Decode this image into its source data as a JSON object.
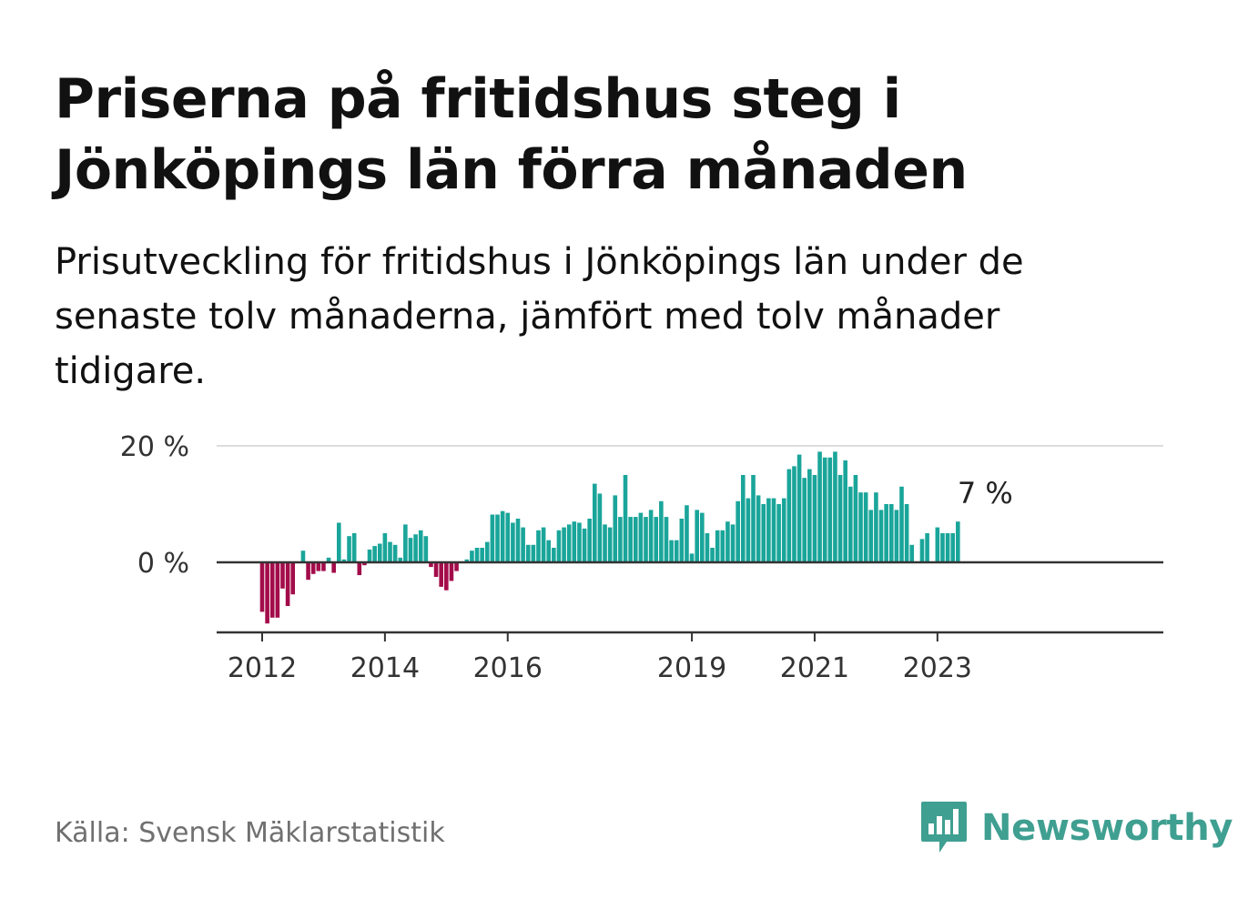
{
  "header": {
    "title": "Priserna på fritidshus steg i Jönköpings län förra månaden",
    "subtitle": "Prisutveckling för fritidshus i Jönköpings län under de senaste tolv månaderna, jämfört med tolv månader tidigare."
  },
  "footer": {
    "source": "Källa: Svensk Mäklarstatistik",
    "brand": "Newsworthy"
  },
  "colors": {
    "positive": "#1aa59a",
    "negative": "#a30c4a",
    "gridline": "#dddddd",
    "axis": "#333333",
    "brand": "#3f9f91"
  },
  "chart_data": {
    "type": "bar",
    "title": "Prisutveckling för fritidshus i Jönköpings län",
    "ylabel": "",
    "xlabel": "",
    "ylim": [
      -12,
      20
    ],
    "y_ticks": [
      0,
      20
    ],
    "y_tick_labels": [
      "0 %",
      "20 %"
    ],
    "x_ticks": [
      "2012",
      "2014",
      "2016",
      "2019",
      "2021",
      "2023"
    ],
    "last_value_label": "7 %",
    "series": [
      {
        "name": "Prisutveckling (%)",
        "start": "2012-01",
        "values": [
          -8.5,
          -10.5,
          -9.5,
          -9.5,
          -4.5,
          -7.5,
          -5.5,
          0,
          2,
          -3,
          -2,
          -1.5,
          -1.5,
          0.8,
          -1.8,
          6.8,
          0.5,
          4.5,
          5,
          -2.2,
          -0.5,
          2.2,
          2.8,
          3.2,
          5,
          3.5,
          3,
          0.8,
          6.5,
          4.2,
          4.8,
          5.5,
          4.5,
          -0.8,
          -2.5,
          -4.2,
          -4.8,
          -3.2,
          -1.5,
          0,
          0.5,
          2,
          2.5,
          2.5,
          3.5,
          8.2,
          8.2,
          8.8,
          8.5,
          6.8,
          7.5,
          6,
          3,
          3,
          5.5,
          6,
          3.8,
          2.5,
          5.5,
          6,
          6.5,
          7,
          6.8,
          5.8,
          7.5,
          13.5,
          11.8,
          6.5,
          6,
          11.5,
          7.8,
          15,
          7.8,
          7.8,
          8.5,
          7.8,
          9,
          7.8,
          10.5,
          7.8,
          3.8,
          3.8,
          7.5,
          9.8,
          1.5,
          9,
          8.5,
          5,
          2.5,
          5.5,
          5.5,
          7,
          6.5,
          10.5,
          15,
          11,
          15,
          11.5,
          10,
          11,
          11,
          10,
          11,
          16,
          16.5,
          18.5,
          14.5,
          16,
          15,
          19,
          18,
          18,
          19,
          15,
          17.5,
          13,
          15,
          12,
          12,
          9,
          12,
          9,
          10,
          10,
          9,
          13,
          10,
          3,
          0,
          4,
          5,
          0,
          6,
          5,
          5,
          5,
          7
        ]
      }
    ]
  }
}
